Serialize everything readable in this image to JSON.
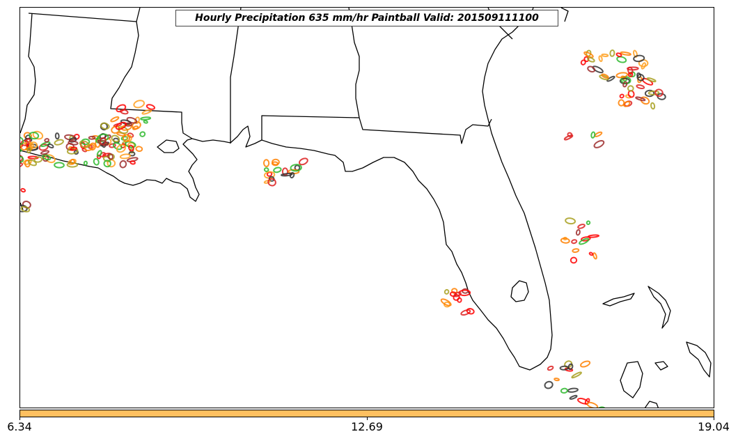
{
  "map": {
    "title": "Hourly Precipitation 635 mm/hr Paintball Valid: 201509111100",
    "region": "Gulf Coast / Florida",
    "colors": {
      "coastline": "#000000",
      "member_colors": [
        "#2db82d",
        "#ff8000",
        "#ff0000",
        "#9c2a2a",
        "#333333",
        "#a8a020",
        "#ffa020",
        "#dd2020"
      ]
    }
  },
  "colorbar": {
    "fill_color": "#ffc060",
    "tick_labels": [
      "6.34",
      "12.69",
      "19.04"
    ]
  }
}
